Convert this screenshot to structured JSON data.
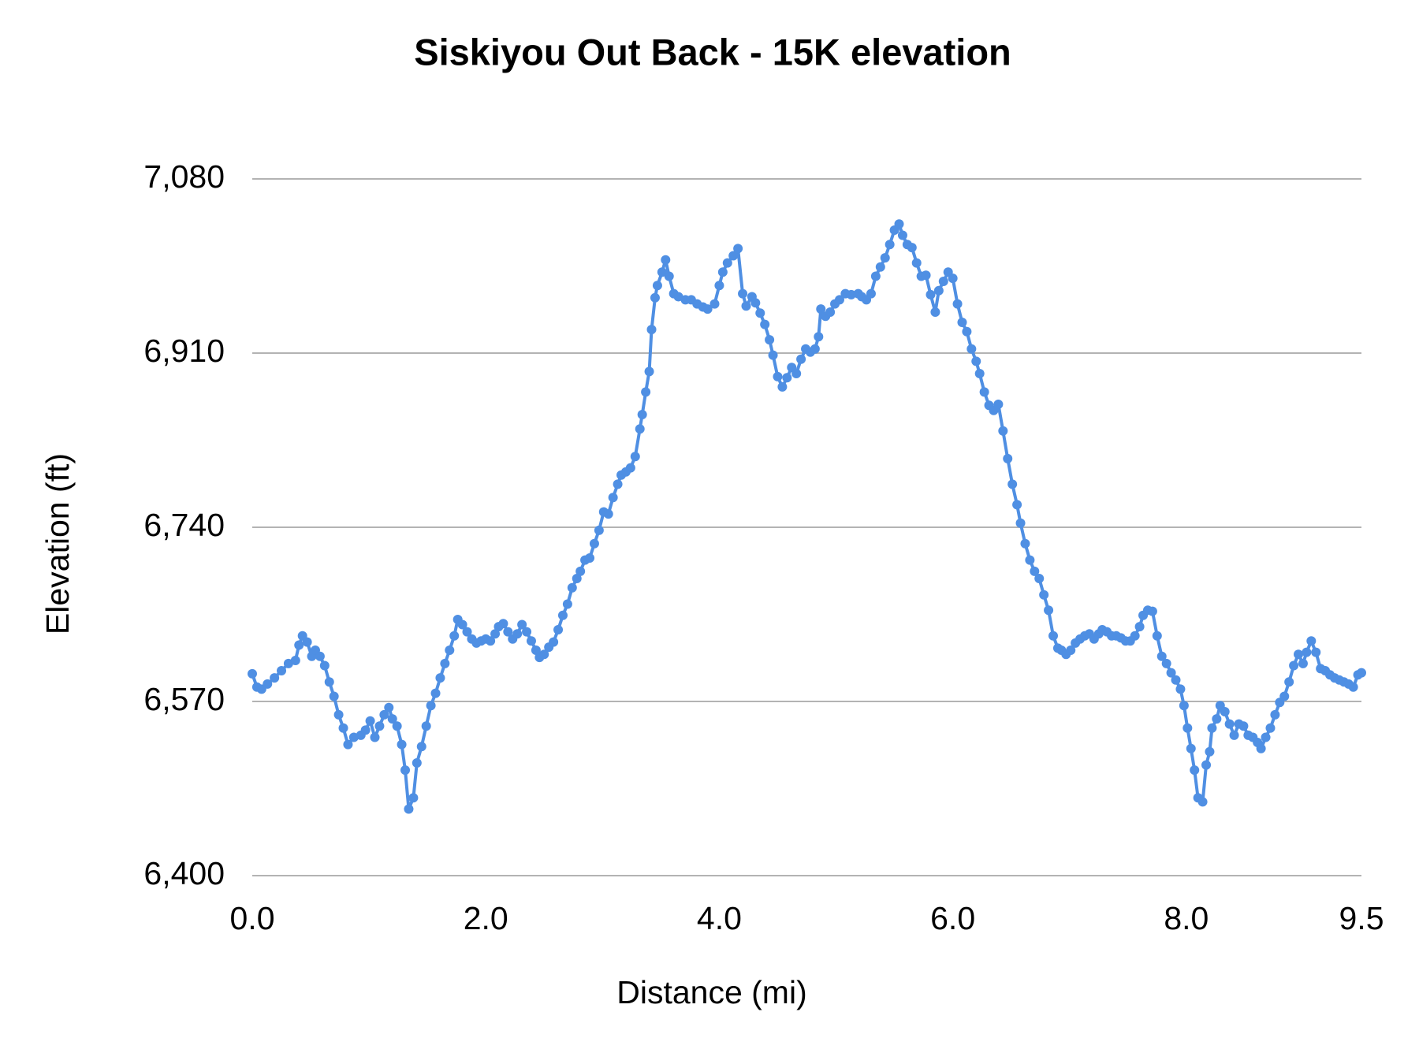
{
  "chart_data": {
    "type": "line",
    "title": "Siskiyou Out Back - 15K elevation",
    "x_label": "Distance (mi)",
    "y_label": "Elevation (ft)",
    "color": "#4f8fe3",
    "markers": true,
    "grid": true,
    "xlim": [
      0,
      9.5
    ],
    "ylim": [
      6400,
      7080
    ],
    "xticks": [
      {
        "value": 0,
        "label": "0.0"
      },
      {
        "value": 2,
        "label": "2.0"
      },
      {
        "value": 4,
        "label": "4.0"
      },
      {
        "value": 6,
        "label": "6.0"
      },
      {
        "value": 8,
        "label": "8.0"
      },
      9.5
    ],
    "yticks": [
      {
        "value": 6400,
        "label": "6,400"
      },
      {
        "value": 6570,
        "label": "6,570"
      },
      {
        "value": 6740,
        "label": "6,740"
      },
      {
        "value": 6910,
        "label": "6,910"
      },
      {
        "value": 7080,
        "label": "7,080"
      }
    ],
    "x": [
      0,
      0.04,
      0.08,
      0.13,
      0.19,
      0.25,
      0.31,
      0.37,
      0.4,
      0.43,
      0.47,
      0.51,
      0.54,
      0.58,
      0.62,
      0.66,
      0.7,
      0.74,
      0.78,
      0.82,
      0.87,
      0.93,
      0.97,
      1.01,
      1.05,
      1.09,
      1.13,
      1.17,
      1.2,
      1.24,
      1.28,
      1.31,
      1.34,
      1.38,
      1.41,
      1.45,
      1.49,
      1.53,
      1.57,
      1.61,
      1.65,
      1.69,
      1.73,
      1.76,
      1.8,
      1.84,
      1.88,
      1.92,
      1.96,
      2.0,
      2.04,
      2.08,
      2.11,
      2.15,
      2.19,
      2.23,
      2.27,
      2.31,
      2.35,
      2.39,
      2.43,
      2.46,
      2.5,
      2.54,
      2.58,
      2.62,
      2.66,
      2.7,
      2.74,
      2.78,
      2.81,
      2.85,
      2.89,
      2.93,
      2.97,
      3.01,
      3.05,
      3.09,
      3.13,
      3.16,
      3.2,
      3.24,
      3.28,
      3.32,
      3.34,
      3.37,
      3.4,
      3.42,
      3.45,
      3.47,
      3.51,
      3.54,
      3.57,
      3.61,
      3.65,
      3.71,
      3.76,
      3.81,
      3.86,
      3.9,
      3.96,
      4.0,
      4.03,
      4.07,
      4.12,
      4.16,
      4.2,
      4.23,
      4.28,
      4.31,
      4.35,
      4.39,
      4.43,
      4.46,
      4.5,
      4.54,
      4.58,
      4.62,
      4.66,
      4.7,
      4.74,
      4.78,
      4.82,
      4.85,
      4.87,
      4.91,
      4.95,
      4.99,
      5.03,
      5.08,
      5.13,
      5.19,
      5.22,
      5.26,
      5.3,
      5.34,
      5.38,
      5.42,
      5.46,
      5.5,
      5.54,
      5.57,
      5.61,
      5.65,
      5.69,
      5.73,
      5.77,
      5.81,
      5.85,
      5.88,
      5.92,
      5.96,
      6.0,
      6.04,
      6.08,
      6.12,
      6.16,
      6.2,
      6.23,
      6.27,
      6.31,
      6.35,
      6.39,
      6.43,
      6.47,
      6.51,
      6.55,
      6.58,
      6.62,
      6.66,
      6.7,
      6.74,
      6.78,
      6.82,
      6.86,
      6.9,
      6.93,
      6.97,
      7.01,
      7.05,
      7.09,
      7.13,
      7.17,
      7.21,
      7.25,
      7.28,
      7.32,
      7.36,
      7.4,
      7.44,
      7.48,
      7.52,
      7.56,
      7.6,
      7.63,
      7.67,
      7.71,
      7.75,
      7.79,
      7.83,
      7.87,
      7.91,
      7.95,
      7.98,
      8.01,
      8.04,
      8.07,
      8.1,
      8.14,
      8.17,
      8.2,
      8.22,
      8.26,
      8.29,
      8.33,
      8.37,
      8.41,
      8.45,
      8.49,
      8.53,
      8.57,
      8.61,
      8.64,
      8.68,
      8.72,
      8.76,
      8.8,
      8.84,
      8.88,
      8.92,
      8.96,
      9.0,
      9.03,
      9.07,
      9.11,
      9.15,
      9.19,
      9.23,
      9.27,
      9.31,
      9.35,
      9.39,
      9.43,
      9.47,
      9.5
    ],
    "values": [
      6597,
      6584,
      6582,
      6587,
      6593,
      6600,
      6607,
      6610,
      6625,
      6634,
      6628,
      6614,
      6620,
      6614,
      6605,
      6589,
      6575,
      6557,
      6544,
      6528,
      6535,
      6537,
      6542,
      6551,
      6535,
      6546,
      6557,
      6564,
      6553,
      6546,
      6528,
      6503,
      6465,
      6476,
      6510,
      6526,
      6546,
      6566,
      6578,
      6593,
      6607,
      6620,
      6634,
      6650,
      6645,
      6638,
      6631,
      6627,
      6629,
      6631,
      6629,
      6636,
      6643,
      6646,
      6638,
      6631,
      6636,
      6645,
      6638,
      6629,
      6620,
      6613,
      6616,
      6623,
      6628,
      6640,
      6654,
      6665,
      6681,
      6690,
      6697,
      6708,
      6710,
      6724,
      6737,
      6755,
      6753,
      6769,
      6782,
      6791,
      6794,
      6798,
      6809,
      6836,
      6850,
      6872,
      6892,
      6933,
      6964,
      6976,
      6989,
      7001,
      6985,
      6968,
      6965,
      6962,
      6962,
      6958,
      6955,
      6953,
      6958,
      6976,
      6989,
      6998,
      7005,
      7012,
      6968,
      6956,
      6965,
      6959,
      6949,
      6938,
      6923,
      6908,
      6887,
      6877,
      6886,
      6896,
      6890,
      6904,
      6914,
      6911,
      6914,
      6926,
      6953,
      6946,
      6950,
      6958,
      6962,
      6968,
      6967,
      6968,
      6965,
      6962,
      6968,
      6985,
      6994,
      7003,
      7016,
      7030,
      7036,
      7025,
      7016,
      7013,
      6998,
      6985,
      6986,
      6967,
      6950,
      6971,
      6980,
      6989,
      6983,
      6958,
      6940,
      6931,
      6914,
      6902,
      6890,
      6872,
      6859,
      6854,
      6860,
      6834,
      6807,
      6782,
      6762,
      6744,
      6724,
      6708,
      6697,
      6690,
      6674,
      6659,
      6634,
      6622,
      6620,
      6616,
      6620,
      6627,
      6631,
      6634,
      6636,
      6631,
      6636,
      6640,
      6638,
      6634,
      6634,
      6632,
      6629,
      6629,
      6634,
      6643,
      6654,
      6659,
      6658,
      6634,
      6614,
      6607,
      6598,
      6591,
      6582,
      6566,
      6544,
      6524,
      6503,
      6476,
      6472,
      6508,
      6521,
      6544,
      6553,
      6566,
      6560,
      6548,
      6537,
      6548,
      6546,
      6537,
      6535,
      6530,
      6524,
      6535,
      6544,
      6557,
      6569,
      6575,
      6589,
      6605,
      6616,
      6607,
      6618,
      6629,
      6618,
      6602,
      6600,
      6596,
      6593,
      6591,
      6589,
      6587,
      6584,
      6596,
      6598
    ]
  }
}
